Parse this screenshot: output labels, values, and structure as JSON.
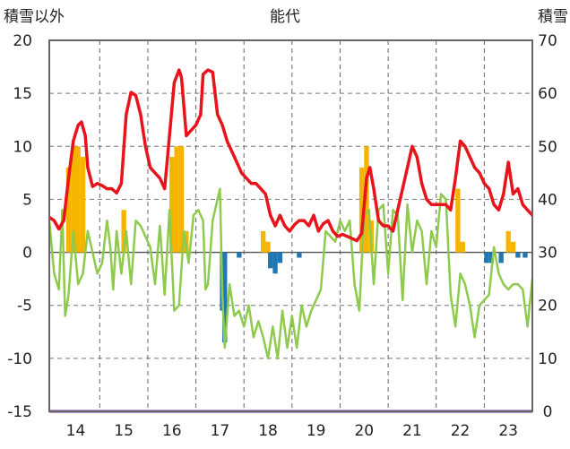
{
  "chart_data": {
    "type": "line",
    "title": "能代",
    "left_axis_label": "積雪以外",
    "right_axis_label": "積雪",
    "ylim_left": [
      -15,
      20
    ],
    "ylim_right": [
      0,
      70
    ],
    "yticks_left": [
      "20",
      "15",
      "10",
      "5",
      "0",
      "-5",
      "-10",
      "-15"
    ],
    "yticks_right": [
      "70",
      "60",
      "50",
      "40",
      "30",
      "20",
      "10",
      "0"
    ],
    "x_tick_labels": [
      "14",
      "15",
      "16",
      "17",
      "18",
      "19",
      "20",
      "21",
      "22",
      "23"
    ],
    "x_range": [
      13.45,
      23.5
    ],
    "grid": true,
    "colors": {
      "red_line": "#e8141c",
      "green_line": "#8ecb4d",
      "orange_bars": "#f5b400",
      "blue_bars": "#1f77b4",
      "bottom_line": "#7030a0",
      "frame": "#666666"
    },
    "series": [
      {
        "color": "red",
        "axis": "left",
        "points": [
          [
            13.45,
            3.3
          ],
          [
            13.55,
            3.0
          ],
          [
            13.65,
            2.2
          ],
          [
            13.75,
            3.0
          ],
          [
            13.85,
            7.0
          ],
          [
            13.95,
            10.5
          ],
          [
            14.05,
            12.0
          ],
          [
            14.12,
            12.3
          ],
          [
            14.2,
            11.0
          ],
          [
            14.25,
            8.0
          ],
          [
            14.35,
            6.2
          ],
          [
            14.45,
            6.5
          ],
          [
            14.55,
            6.3
          ],
          [
            14.65,
            6.0
          ],
          [
            14.75,
            6.0
          ],
          [
            14.85,
            5.6
          ],
          [
            14.95,
            6.5
          ],
          [
            15.05,
            13.0
          ],
          [
            15.15,
            15.1
          ],
          [
            15.25,
            14.8
          ],
          [
            15.35,
            13.0
          ],
          [
            15.45,
            10.0
          ],
          [
            15.55,
            8.0
          ],
          [
            15.65,
            7.5
          ],
          [
            15.75,
            7.0
          ],
          [
            15.85,
            6.0
          ],
          [
            15.95,
            11.0
          ],
          [
            16.05,
            16.0
          ],
          [
            16.15,
            17.2
          ],
          [
            16.2,
            16.5
          ],
          [
            16.3,
            11.0
          ],
          [
            16.4,
            11.5
          ],
          [
            16.5,
            12.0
          ],
          [
            16.6,
            13.0
          ],
          [
            16.65,
            16.8
          ],
          [
            16.75,
            17.2
          ],
          [
            16.85,
            17.0
          ],
          [
            16.95,
            13.0
          ],
          [
            17.05,
            12.0
          ],
          [
            17.15,
            10.5
          ],
          [
            17.25,
            9.5
          ],
          [
            17.35,
            8.5
          ],
          [
            17.45,
            7.5
          ],
          [
            17.55,
            7.0
          ],
          [
            17.65,
            6.5
          ],
          [
            17.75,
            6.5
          ],
          [
            17.85,
            6.0
          ],
          [
            17.95,
            5.5
          ],
          [
            18.05,
            3.5
          ],
          [
            18.15,
            2.5
          ],
          [
            18.25,
            3.5
          ],
          [
            18.35,
            2.5
          ],
          [
            18.45,
            2.0
          ],
          [
            18.55,
            2.6
          ],
          [
            18.65,
            3.0
          ],
          [
            18.75,
            3.0
          ],
          [
            18.85,
            2.5
          ],
          [
            18.95,
            3.5
          ],
          [
            19.05,
            2.0
          ],
          [
            19.15,
            2.7
          ],
          [
            19.25,
            3.0
          ],
          [
            19.35,
            2.0
          ],
          [
            19.45,
            1.5
          ],
          [
            19.55,
            1.7
          ],
          [
            19.65,
            1.5
          ],
          [
            19.75,
            1.3
          ],
          [
            19.85,
            1.1
          ],
          [
            19.95,
            1.8
          ],
          [
            20.05,
            7.0
          ],
          [
            20.12,
            8.0
          ],
          [
            20.2,
            6.0
          ],
          [
            20.3,
            3.0
          ],
          [
            20.4,
            2.5
          ],
          [
            20.5,
            2.5
          ],
          [
            20.6,
            2.0
          ],
          [
            20.7,
            4.0
          ],
          [
            20.8,
            6.0
          ],
          [
            20.9,
            8.0
          ],
          [
            21.0,
            10.0
          ],
          [
            21.1,
            9.0
          ],
          [
            21.2,
            6.5
          ],
          [
            21.3,
            5.0
          ],
          [
            21.4,
            4.5
          ],
          [
            21.5,
            4.5
          ],
          [
            21.6,
            4.5
          ],
          [
            21.7,
            4.5
          ],
          [
            21.8,
            4.0
          ],
          [
            21.9,
            7.0
          ],
          [
            22.0,
            10.5
          ],
          [
            22.1,
            10.0
          ],
          [
            22.2,
            9.0
          ],
          [
            22.3,
            8.0
          ],
          [
            22.4,
            7.5
          ],
          [
            22.5,
            6.5
          ],
          [
            22.6,
            6.0
          ],
          [
            22.7,
            4.5
          ],
          [
            22.8,
            4.0
          ],
          [
            22.9,
            5.5
          ],
          [
            23.0,
            8.5
          ],
          [
            23.1,
            5.5
          ],
          [
            23.2,
            6.0
          ],
          [
            23.3,
            4.5
          ],
          [
            23.4,
            4.0
          ],
          [
            23.5,
            3.5
          ]
        ]
      },
      {
        "color": "green",
        "axis": "left",
        "points": [
          [
            13.45,
            3.0
          ],
          [
            13.55,
            -2.0
          ],
          [
            13.65,
            -3.5
          ],
          [
            13.72,
            4.0
          ],
          [
            13.78,
            -6.0
          ],
          [
            13.85,
            -4.0
          ],
          [
            13.95,
            2.0
          ],
          [
            14.05,
            -3.0
          ],
          [
            14.15,
            -2.0
          ],
          [
            14.25,
            2.0
          ],
          [
            14.35,
            0.0
          ],
          [
            14.45,
            -2.0
          ],
          [
            14.55,
            -1.0
          ],
          [
            14.65,
            3.0
          ],
          [
            14.72,
            0.5
          ],
          [
            14.78,
            -3.5
          ],
          [
            14.85,
            2.0
          ],
          [
            14.95,
            -2.0
          ],
          [
            15.05,
            2.0
          ],
          [
            15.15,
            -3.0
          ],
          [
            15.25,
            3.0
          ],
          [
            15.35,
            2.5
          ],
          [
            15.45,
            1.5
          ],
          [
            15.55,
            0.5
          ],
          [
            15.65,
            -3.0
          ],
          [
            15.75,
            2.5
          ],
          [
            15.85,
            -4.0
          ],
          [
            15.95,
            4.0
          ],
          [
            16.05,
            -5.5
          ],
          [
            16.15,
            -5.0
          ],
          [
            16.25,
            2.0
          ],
          [
            16.35,
            -1.0
          ],
          [
            16.45,
            3.5
          ],
          [
            16.55,
            4.0
          ],
          [
            16.65,
            3.0
          ],
          [
            16.7,
            -3.5
          ],
          [
            16.75,
            -3.0
          ],
          [
            16.85,
            3.0
          ],
          [
            16.95,
            5.0
          ],
          [
            17.0,
            6.0
          ],
          [
            17.05,
            -4.0
          ],
          [
            17.1,
            -9.0
          ],
          [
            17.2,
            -3.0
          ],
          [
            17.3,
            -6.0
          ],
          [
            17.4,
            -5.5
          ],
          [
            17.5,
            -7.0
          ],
          [
            17.6,
            -5.0
          ],
          [
            17.7,
            -8.0
          ],
          [
            17.8,
            -6.5
          ],
          [
            17.9,
            -8.0
          ],
          [
            18.0,
            -10.0
          ],
          [
            18.1,
            -7.0
          ],
          [
            18.2,
            -10.0
          ],
          [
            18.3,
            -5.5
          ],
          [
            18.4,
            -9.0
          ],
          [
            18.5,
            -6.0
          ],
          [
            18.6,
            -9.0
          ],
          [
            18.7,
            -5.0
          ],
          [
            18.8,
            -7.0
          ],
          [
            18.9,
            -5.5
          ],
          [
            19.0,
            -4.5
          ],
          [
            19.1,
            -3.5
          ],
          [
            19.2,
            2.0
          ],
          [
            19.3,
            1.5
          ],
          [
            19.4,
            1.0
          ],
          [
            19.5,
            3.0
          ],
          [
            19.6,
            2.0
          ],
          [
            19.7,
            3.0
          ],
          [
            19.8,
            -3.0
          ],
          [
            19.9,
            -5.5
          ],
          [
            20.0,
            3.5
          ],
          [
            20.1,
            4.0
          ],
          [
            20.2,
            -3.0
          ],
          [
            20.3,
            4.0
          ],
          [
            20.4,
            4.5
          ],
          [
            20.5,
            -2.0
          ],
          [
            20.6,
            4.0
          ],
          [
            20.7,
            3.5
          ],
          [
            20.8,
            -4.5
          ],
          [
            20.9,
            4.5
          ],
          [
            21.0,
            0.0
          ],
          [
            21.1,
            3.0
          ],
          [
            21.2,
            2.0
          ],
          [
            21.3,
            -3.0
          ],
          [
            21.4,
            2.0
          ],
          [
            21.5,
            0.5
          ],
          [
            21.6,
            5.5
          ],
          [
            21.7,
            5.0
          ],
          [
            21.8,
            -4.0
          ],
          [
            21.9,
            -7.0
          ],
          [
            22.0,
            -2.0
          ],
          [
            22.1,
            -3.0
          ],
          [
            22.2,
            -5.0
          ],
          [
            22.3,
            -8.0
          ],
          [
            22.4,
            -5.0
          ],
          [
            22.5,
            -4.5
          ],
          [
            22.6,
            -4.0
          ],
          [
            22.7,
            0.5
          ],
          [
            22.8,
            -2.0
          ],
          [
            22.9,
            -3.0
          ],
          [
            23.0,
            -3.5
          ],
          [
            23.1,
            -3.0
          ],
          [
            23.2,
            -3.0
          ],
          [
            23.3,
            -3.5
          ],
          [
            23.4,
            -7.0
          ],
          [
            23.5,
            -2.5
          ]
        ]
      }
    ],
    "bars": [
      {
        "color": "orange",
        "axis": "left",
        "x": 13.85,
        "value": 8.0
      },
      {
        "color": "orange",
        "axis": "left",
        "x": 13.95,
        "value": 10.0
      },
      {
        "color": "orange",
        "axis": "left",
        "x": 14.05,
        "value": 10.0
      },
      {
        "color": "orange",
        "axis": "left",
        "x": 14.15,
        "value": 9.0
      },
      {
        "color": "orange",
        "axis": "left",
        "x": 15.0,
        "value": 4.0
      },
      {
        "color": "orange",
        "axis": "left",
        "x": 16.0,
        "value": 9.0
      },
      {
        "color": "orange",
        "axis": "left",
        "x": 16.1,
        "value": 10.0
      },
      {
        "color": "orange",
        "axis": "left",
        "x": 16.2,
        "value": 10.0
      },
      {
        "color": "orange",
        "axis": "left",
        "x": 16.3,
        "value": 2.0
      },
      {
        "color": "orange",
        "axis": "left",
        "x": 17.9,
        "value": 2.0
      },
      {
        "color": "orange",
        "axis": "left",
        "x": 18.0,
        "value": 1.0
      },
      {
        "color": "orange",
        "axis": "left",
        "x": 19.95,
        "value": 8.0
      },
      {
        "color": "orange",
        "axis": "left",
        "x": 20.05,
        "value": 10.0
      },
      {
        "color": "orange",
        "axis": "left",
        "x": 20.15,
        "value": 3.0
      },
      {
        "color": "orange",
        "axis": "left",
        "x": 21.95,
        "value": 6.0
      },
      {
        "color": "orange",
        "axis": "left",
        "x": 22.05,
        "value": 1.0
      },
      {
        "color": "orange",
        "axis": "left",
        "x": 23.0,
        "value": 2.0
      },
      {
        "color": "orange",
        "axis": "left",
        "x": 23.1,
        "value": 1.0
      },
      {
        "color": "blue",
        "axis": "left",
        "x": 17.05,
        "value": -5.5
      },
      {
        "color": "blue",
        "axis": "left",
        "x": 17.1,
        "value": -8.5
      },
      {
        "color": "blue",
        "axis": "left",
        "x": 17.4,
        "value": -0.5
      },
      {
        "color": "blue",
        "axis": "left",
        "x": 18.05,
        "value": -1.5
      },
      {
        "color": "blue",
        "axis": "left",
        "x": 18.15,
        "value": -2.0
      },
      {
        "color": "blue",
        "axis": "left",
        "x": 18.25,
        "value": -1.0
      },
      {
        "color": "blue",
        "axis": "left",
        "x": 18.65,
        "value": -0.5
      },
      {
        "color": "blue",
        "axis": "left",
        "x": 22.55,
        "value": -1.0
      },
      {
        "color": "blue",
        "axis": "left",
        "x": 22.65,
        "value": -1.0
      },
      {
        "color": "blue",
        "axis": "left",
        "x": 22.85,
        "value": -1.0
      },
      {
        "color": "blue",
        "axis": "left",
        "x": 23.2,
        "value": -0.5
      },
      {
        "color": "blue",
        "axis": "left",
        "x": 23.35,
        "value": -0.5
      }
    ]
  }
}
